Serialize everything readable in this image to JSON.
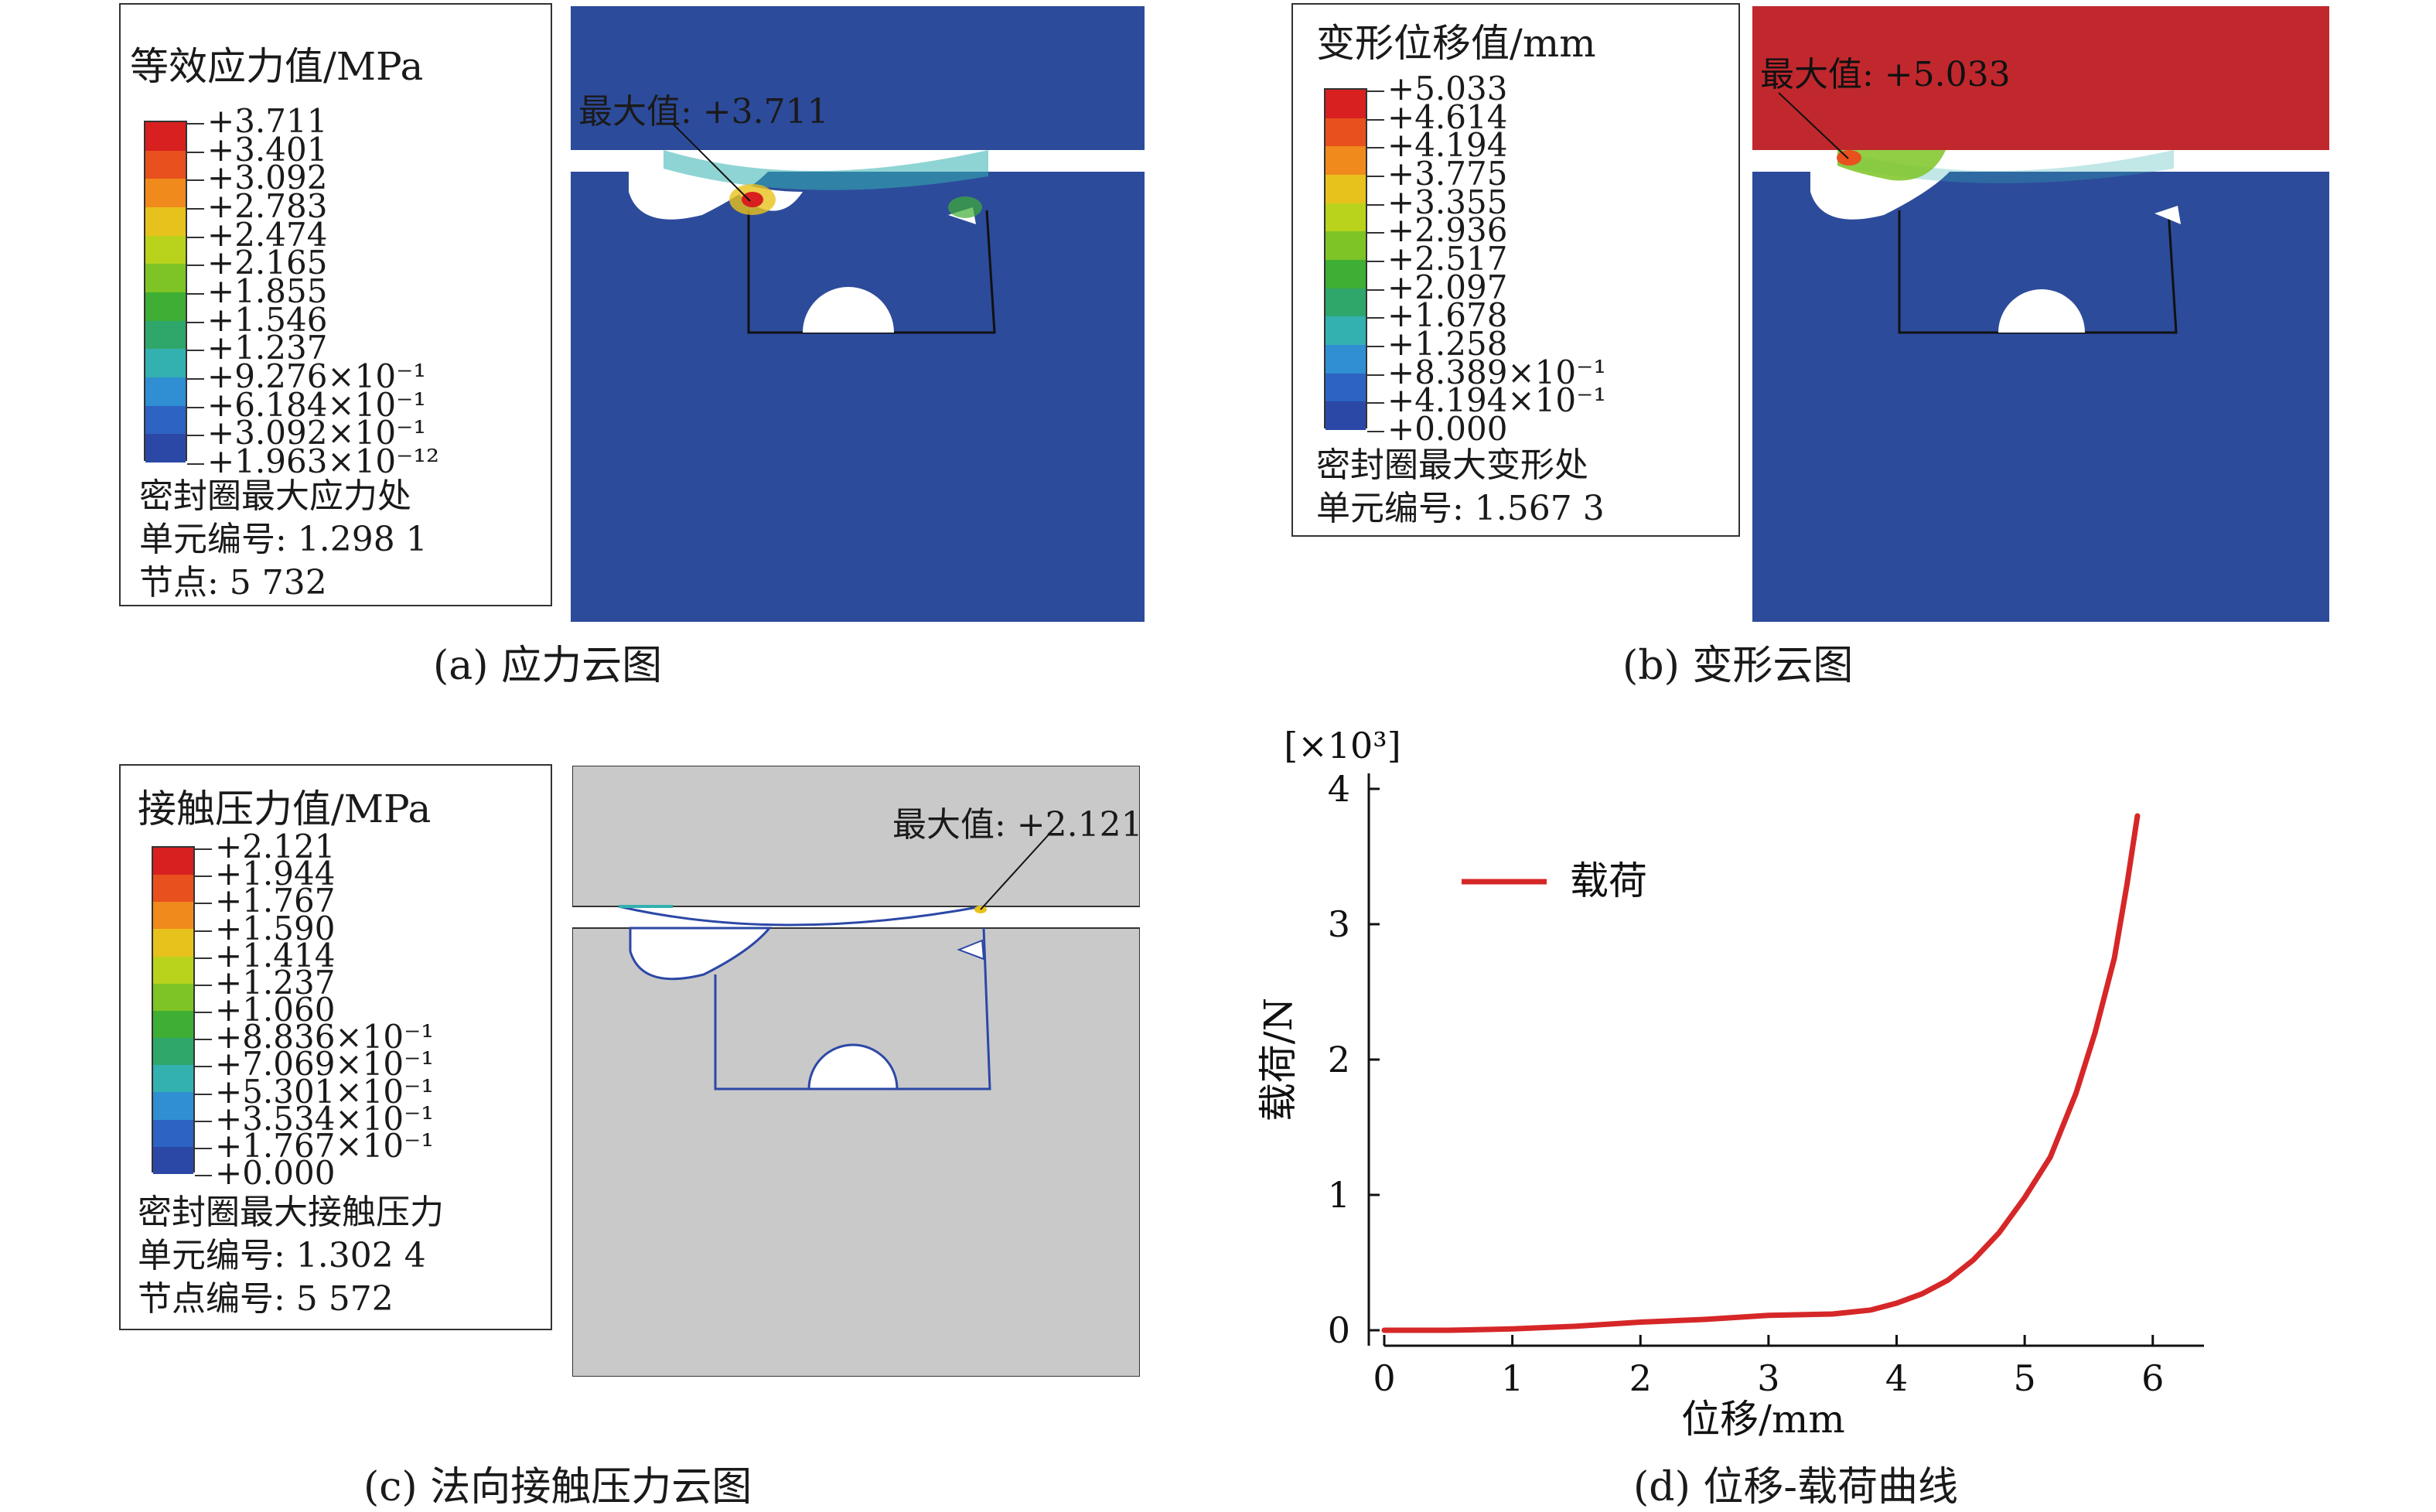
{
  "panels": {
    "a": {
      "title": "等效应力值/MPa",
      "legend": [
        "+3.711",
        "+3.401",
        "+3.092",
        "+2.783",
        "+2.474",
        "+2.165",
        "+1.855",
        "+1.546",
        "+1.237",
        "+9.276×10⁻¹",
        "+6.184×10⁻¹",
        "+3.092×10⁻¹",
        "+1.963×10⁻¹²"
      ],
      "info": [
        "密封圈最大应力处",
        "单元编号: 1.298 1",
        "节点: 5 732"
      ],
      "max_label": "最大值: +3.711",
      "caption": "(a) 应力云图",
      "color": "#2d4b9b"
    },
    "b": {
      "title": "变形位移值/mm",
      "legend": [
        "+5.033",
        "+4.614",
        "+4.194",
        "+3.775",
        "+3.355",
        "+2.936",
        "+2.517",
        "+2.097",
        "+1.678",
        "+1.258",
        "+8.389×10⁻¹",
        "+4.194×10⁻¹",
        "+0.000"
      ],
      "info": [
        "密封圈最大变形处",
        "单元编号: 1.567 3"
      ],
      "max_label": "最大值: +5.033",
      "caption": "(b) 变形云图",
      "color": "#c0282d"
    },
    "c": {
      "title": "接触压力值/MPa",
      "legend": [
        "+2.121",
        "+1.944",
        "+1.767",
        "+1.590",
        "+1.414",
        "+1.237",
        "+1.060",
        "+8.836×10⁻¹",
        "+7.069×10⁻¹",
        "+5.301×10⁻¹",
        "+3.534×10⁻¹",
        "+1.767×10⁻¹",
        "+0.000"
      ],
      "info": [
        "密封圈最大接触压力",
        "单元编号: 1.302 4",
        "节点编号: 5 572"
      ],
      "max_label": "最大值: +2.121",
      "caption": "(c) 法向接触压力云图",
      "color": "#c9c9c9"
    },
    "d": {
      "caption": "(d) 位移-载荷曲线"
    }
  },
  "legend_colors": [
    "#d7201f",
    "#e8501d",
    "#f08a1c",
    "#e8c21c",
    "#b9d21c",
    "#7ec425",
    "#3fae34",
    "#2fa66a",
    "#33b0b0",
    "#2f8fd2",
    "#2d63c2",
    "#2c48a6",
    "#2d4b9b"
  ],
  "chart_data": {
    "type": "line",
    "title": "",
    "xlabel": "位移/mm",
    "ylabel": "载荷/N",
    "y_multiplier": "[×10³]",
    "xlim": [
      0,
      6.4
    ],
    "ylim": [
      0,
      4
    ],
    "xticks": [
      "0",
      "1",
      "2",
      "3",
      "4",
      "5",
      "6"
    ],
    "yticks": [
      "0",
      "1",
      "2",
      "3",
      "4"
    ],
    "legend_position": "top-left",
    "series": [
      {
        "name": "载荷",
        "color": "#d62728",
        "x": [
          0,
          0.5,
          1.0,
          1.5,
          2.0,
          2.5,
          3.0,
          3.5,
          3.8,
          4.0,
          4.2,
          4.4,
          4.6,
          4.8,
          5.0,
          5.2,
          5.4,
          5.55,
          5.7,
          5.8,
          5.88
        ],
        "y": [
          0,
          0.0,
          0.01,
          0.03,
          0.06,
          0.08,
          0.11,
          0.12,
          0.15,
          0.2,
          0.27,
          0.37,
          0.52,
          0.72,
          0.98,
          1.28,
          1.75,
          2.2,
          2.75,
          3.3,
          3.8
        ]
      }
    ]
  }
}
